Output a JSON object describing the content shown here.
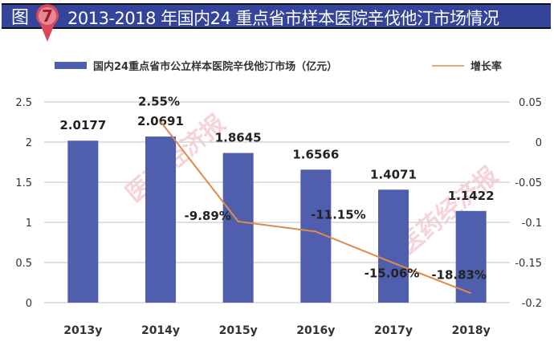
{
  "header": {
    "prefix": "图",
    "number": "7",
    "title": "2013-2018 年国内24 重点省市样本医院辛伐他汀市场情况"
  },
  "watermark": "医药经济报",
  "chart_data": {
    "type": "bar+line",
    "categories": [
      "2013y",
      "2014y",
      "2015y",
      "2016y",
      "2017y",
      "2018y"
    ],
    "series": [
      {
        "name": "国内24重点省市公立样本医院辛伐他汀市场（亿元）",
        "type": "bar",
        "axis": "left",
        "color": "#4f5fad",
        "values": [
          2.0177,
          2.0691,
          1.8645,
          1.6566,
          1.4071,
          1.1422
        ],
        "labels": [
          "2.0177",
          "2.0691",
          "1.8645",
          "1.6566",
          "1.4071",
          "1.1422"
        ]
      },
      {
        "name": "增长率",
        "type": "line",
        "axis": "right",
        "color": "#e08a4a",
        "values": [
          null,
          0.0255,
          -0.0989,
          -0.1115,
          -0.1506,
          -0.1883
        ],
        "labels": [
          "",
          "2.55%",
          "-9.89%",
          "-11.15%",
          "-15.06%",
          "-18.83%"
        ]
      }
    ],
    "left_axis": {
      "range": [
        0,
        2.5
      ],
      "ticks": [
        "0",
        "0.5",
        "1",
        "1.5",
        "2",
        "2.5"
      ]
    },
    "right_axis": {
      "range": [
        -0.2,
        0.05
      ],
      "ticks": [
        "-0.2",
        "-0.15",
        "-0.1",
        "-0.05",
        "0",
        "0.05"
      ]
    },
    "grid": true,
    "legend_position": "top"
  }
}
